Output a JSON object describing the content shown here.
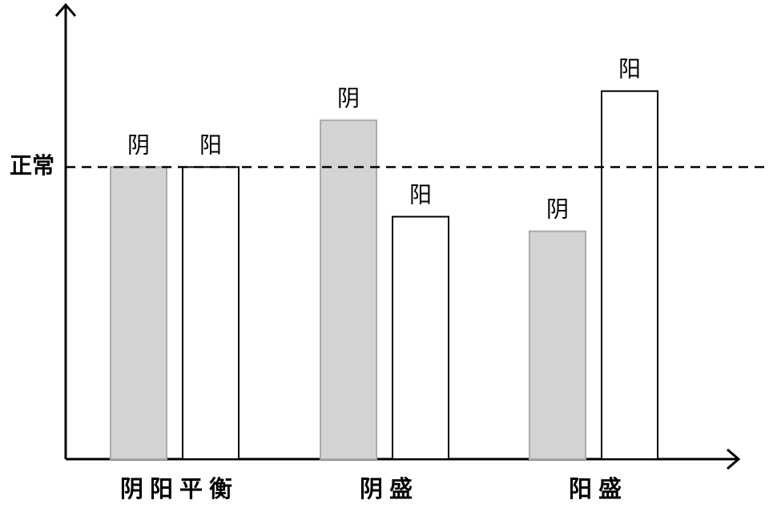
{
  "chart_data": {
    "type": "bar",
    "categories": [
      "阴阳平衡",
      "阴盛",
      "阳盛"
    ],
    "series": [
      {
        "name": "阴",
        "color": "#d3d3d3",
        "values": [
          100,
          116,
          78
        ]
      },
      {
        "name": "阳",
        "color": "#ffffff",
        "values": [
          100,
          83,
          126
        ]
      }
    ],
    "reference_line": {
      "label": "正常",
      "value": 100
    },
    "ylim": [
      0,
      155
    ]
  }
}
